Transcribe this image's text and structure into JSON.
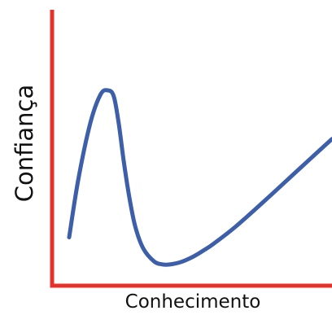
{
  "chart_data": {
    "type": "line",
    "title": "",
    "xlabel": "Conhecimento",
    "ylabel": "Confiança",
    "xlim": [
      0,
      100
    ],
    "ylim": [
      0,
      100
    ],
    "grid": false,
    "legend": "none",
    "axis_color": "#e8302a",
    "series": [
      {
        "color": "#3d5ea8",
        "x": [
          6.1,
          9.4,
          13.7,
          17.3,
          19.8,
          22.0,
          23.8,
          25.6,
          27.5,
          29.7,
          32.6,
          36.5,
          39.3,
          41.8,
          45.7,
          50.1,
          53.9,
          57.7,
          65.5,
          76.5,
          88.4,
          100.0
        ],
        "y": [
          14.3,
          43.2,
          71.1,
          85.0,
          87.1,
          84.3,
          70.8,
          52.0,
          34.9,
          19.7,
          8.7,
          2.3,
          0.9,
          0.8,
          1.9,
          4.5,
          7.6,
          11.1,
          19.5,
          33.1,
          48.3,
          63.0
        ]
      }
    ]
  }
}
